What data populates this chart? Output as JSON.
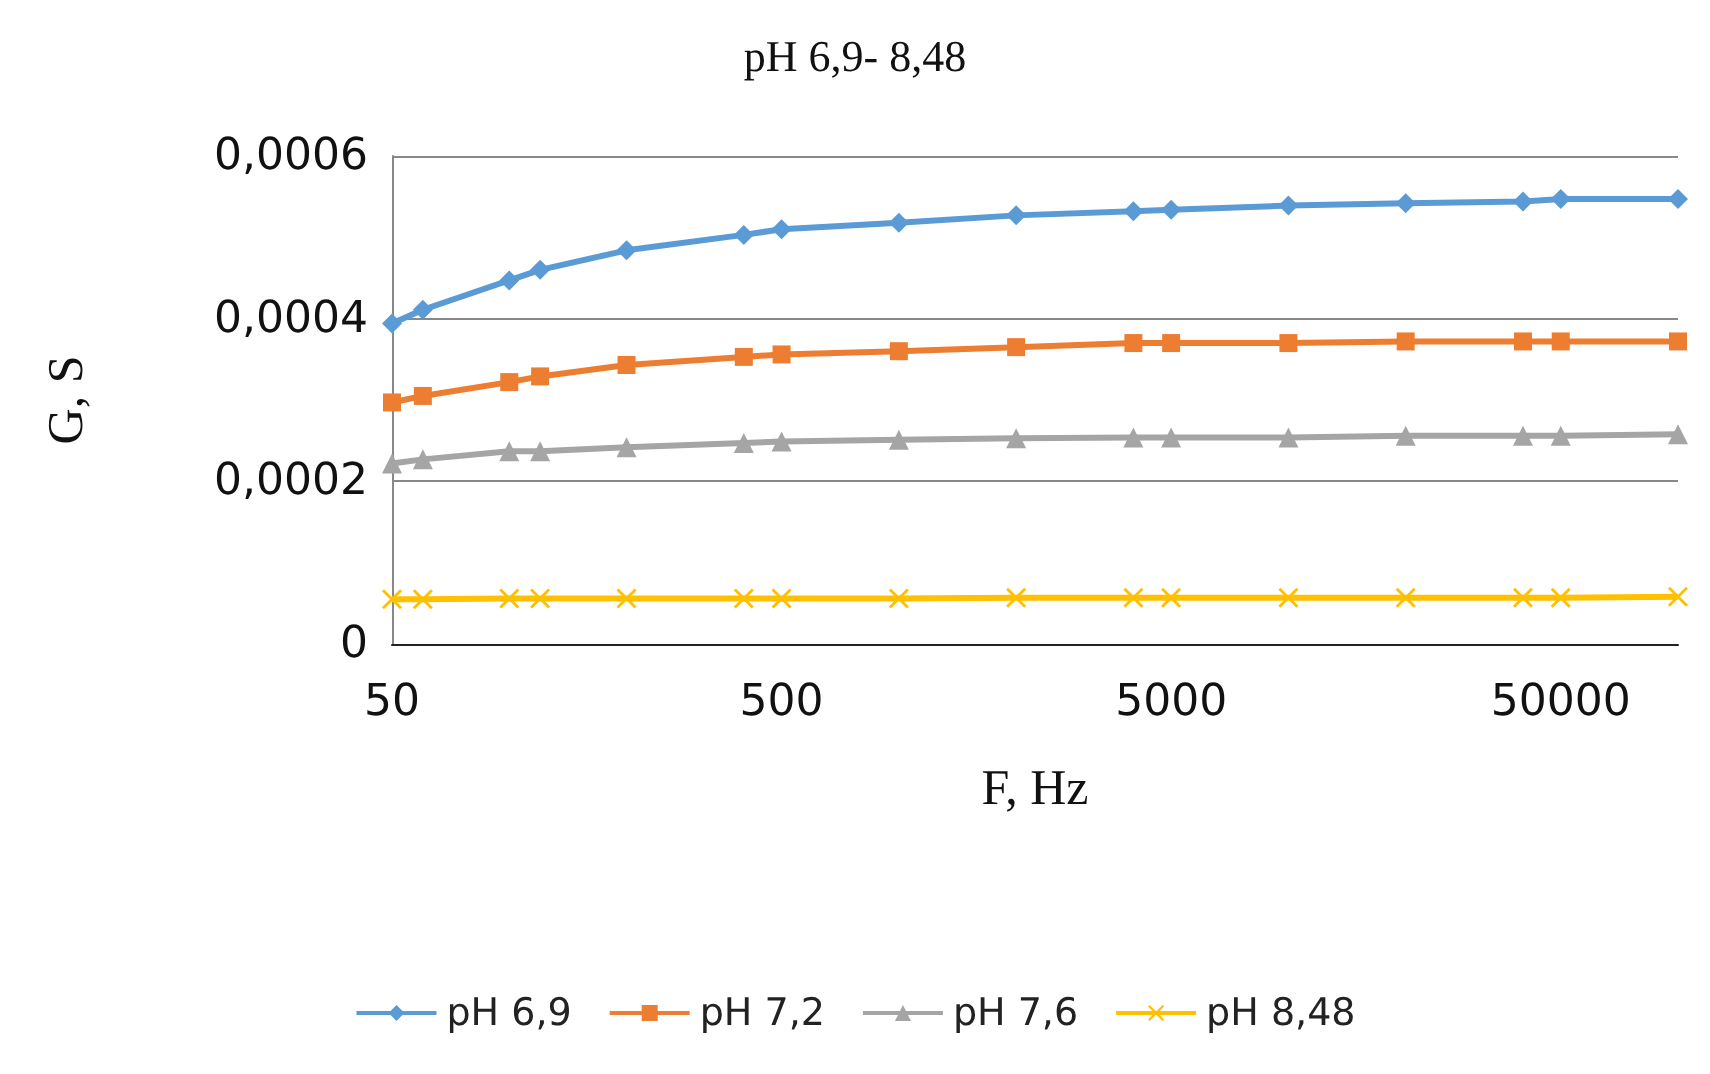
{
  "chart_data": {
    "type": "line",
    "title": "pH 6,9- 8,48",
    "xlabel": "F, Hz",
    "ylabel": "G, S",
    "x": [
      50,
      60,
      100,
      120,
      200,
      400,
      500,
      1000,
      2000,
      4000,
      5000,
      10000,
      20000,
      40000,
      50000,
      100000
    ],
    "series": [
      {
        "name": "pH 6,9",
        "color": "#5b9bd5",
        "marker": "diamond",
        "values": [
          0.000394,
          0.000411,
          0.000447,
          0.00046,
          0.000484,
          0.000503,
          0.00051,
          0.000518,
          0.000527,
          0.000532,
          0.000534,
          0.000539,
          0.000542,
          0.000544,
          0.000547,
          0.000547
        ]
      },
      {
        "name": "pH 7,2",
        "color": "#ed7d31",
        "marker": "square",
        "values": [
          0.000297,
          0.000305,
          0.000322,
          0.000329,
          0.000343,
          0.000353,
          0.000356,
          0.00036,
          0.000365,
          0.00037,
          0.00037,
          0.00037,
          0.000372,
          0.000372,
          0.000372,
          0.000372
        ]
      },
      {
        "name": "pH 7,6",
        "color": "#a5a5a5",
        "marker": "triangle",
        "values": [
          0.000222,
          0.000227,
          0.000237,
          0.000237,
          0.000242,
          0.000247,
          0.000249,
          0.000251,
          0.000253,
          0.000254,
          0.000254,
          0.000254,
          0.000256,
          0.000256,
          0.000256,
          0.000258
        ]
      },
      {
        "name": "pH 8,48",
        "color": "#ffc000",
        "marker": "cross",
        "values": [
          5.5e-05,
          5.5e-05,
          5.6e-05,
          5.6e-05,
          5.6e-05,
          5.6e-05,
          5.6e-05,
          5.6e-05,
          5.7e-05,
          5.7e-05,
          5.7e-05,
          5.7e-05,
          5.7e-05,
          5.7e-05,
          5.7e-05,
          5.8e-05
        ]
      }
    ],
    "log": "x",
    "xlim": [
      50,
      100000
    ],
    "xticks": [
      50,
      500,
      5000,
      50000
    ],
    "ylim": [
      0,
      0.0006
    ],
    "yticks": [
      0,
      {
        "value": 0.0002,
        "label": "0,0002"
      },
      {
        "value": 0.0004,
        "label": "0,0004"
      },
      {
        "value": 0.0006,
        "label": "0,0006"
      }
    ],
    "grid": "y",
    "legend": "bottom",
    "line_style": "solid"
  }
}
